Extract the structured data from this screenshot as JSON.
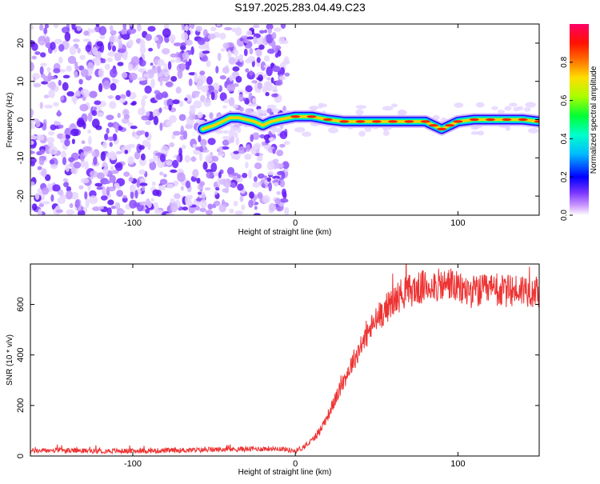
{
  "title": "S197.2025.283.04.49.C23",
  "chart_data": [
    {
      "type": "heatmap",
      "name": "spectrogram",
      "xlabel": "Height of straight line (km)",
      "ylabel": "Frequency (Hz)",
      "xlim": [
        -163,
        150
      ],
      "ylim": [
        -25,
        25
      ],
      "x_ticks": [
        -100,
        0,
        100
      ],
      "x_tick_labels": [
        "-100",
        "0",
        "100"
      ],
      "y_ticks": [
        -20,
        -10,
        0,
        10,
        20
      ],
      "y_tick_labels": [
        "-20",
        "-10",
        "0",
        "10",
        "20"
      ],
      "noise_region_x": [
        -163,
        -8
      ],
      "ridge": {
        "x": [
          -57,
          -50,
          -45,
          -40,
          -35,
          -30,
          -25,
          -20,
          -15,
          -10,
          0,
          10,
          20,
          30,
          40,
          50,
          60,
          70,
          80,
          85,
          90,
          95,
          100,
          110,
          120,
          130,
          140,
          150
        ],
        "freq": [
          -2.5,
          -1.5,
          -0.5,
          0.5,
          0.5,
          0.0,
          -0.5,
          -1.5,
          -0.5,
          0.0,
          0.8,
          0.8,
          0.0,
          -0.5,
          -0.5,
          -0.5,
          -0.5,
          -0.5,
          -0.5,
          -1.5,
          -2.5,
          -1.5,
          -0.5,
          0.0,
          0.0,
          0.0,
          0.0,
          -0.5
        ]
      },
      "colorbar": {
        "label": "Normalized spectral amplitude",
        "range": [
          0.0,
          1.0
        ],
        "ticks": [
          0.0,
          0.2,
          0.4,
          0.6,
          0.8
        ],
        "tick_labels": [
          "0.0",
          "0.2",
          "0.4",
          "0.6",
          "0.8"
        ]
      }
    },
    {
      "type": "line",
      "name": "snr",
      "xlabel": "Height of straight line (km)",
      "ylabel": "SNR (10 * v/v)",
      "xlim": [
        -163,
        150
      ],
      "ylim": [
        0,
        760
      ],
      "x_ticks": [
        -100,
        0,
        100
      ],
      "x_tick_labels": [
        "-100",
        "0",
        "100"
      ],
      "y_ticks": [
        0,
        200,
        400,
        600
      ],
      "y_tick_labels": [
        "0",
        "200",
        "400",
        "600"
      ],
      "color": "#ee3333",
      "series": [
        {
          "name": "SNR",
          "x": [
            -163,
            -150,
            -125,
            -100,
            -75,
            -50,
            -25,
            -10,
            0,
            5,
            10,
            15,
            20,
            25,
            30,
            35,
            40,
            45,
            50,
            55,
            60,
            65,
            70,
            75,
            80,
            85,
            90,
            95,
            100,
            110,
            120,
            130,
            140,
            150
          ],
          "y": [
            20,
            22,
            20,
            20,
            22,
            25,
            28,
            30,
            20,
            35,
            60,
            100,
            160,
            230,
            300,
            370,
            430,
            490,
            540,
            580,
            610,
            640,
            655,
            660,
            670,
            680,
            670,
            685,
            660,
            650,
            655,
            650,
            660,
            650
          ]
        }
      ]
    }
  ]
}
